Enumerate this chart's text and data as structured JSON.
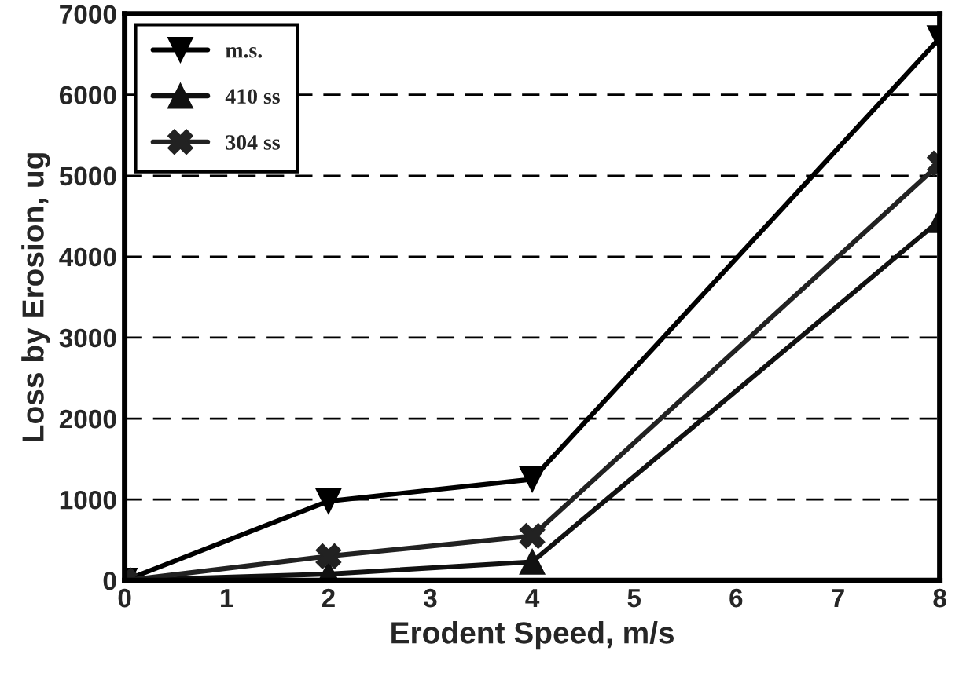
{
  "chart_data": {
    "type": "line",
    "xlabel": "Erodent Speed, m/s",
    "ylabel": "Loss by Erosion, ug",
    "x": [
      0,
      2,
      4,
      8
    ],
    "series": [
      {
        "name": "m.s.",
        "color": "#000000",
        "marker": "triangle_down",
        "values": [
          0,
          980,
          1250,
          6700
        ]
      },
      {
        "name": "410 ss",
        "color": "#111111",
        "marker": "triangle",
        "values": [
          0,
          80,
          230,
          4450
        ]
      },
      {
        "name": "304 ss",
        "color": "#222222",
        "marker": "cross",
        "values": [
          0,
          300,
          550,
          5150
        ]
      }
    ],
    "xlim": [
      0,
      8
    ],
    "ylim": [
      0,
      7000
    ],
    "xticks": [
      0,
      1,
      2,
      3,
      4,
      5,
      6,
      7,
      8
    ],
    "yticks": [
      0,
      1000,
      2000,
      3000,
      4000,
      5000,
      6000,
      7000
    ],
    "grid": "y",
    "legend": "top left",
    "line_style": "solid"
  }
}
